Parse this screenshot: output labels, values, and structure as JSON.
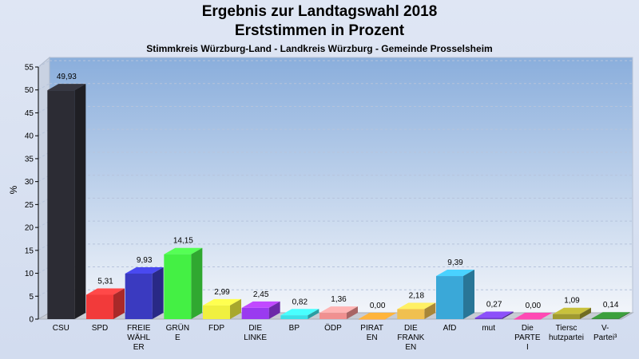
{
  "chart_data": {
    "type": "bar",
    "title": "Ergebnis zur Landtagswahl 2018",
    "title2": "Erststimmen in Prozent",
    "subtitle": "Stimmkreis Würzburg-Land - Landkreis Würzburg - Gemeinde Prosselsheim",
    "ylabel": "%",
    "ylim": [
      0,
      55
    ],
    "yticks": [
      0,
      5,
      10,
      15,
      20,
      25,
      30,
      35,
      40,
      45,
      50,
      55
    ],
    "grid": true,
    "categories": [
      [
        "CSU"
      ],
      [
        "SPD"
      ],
      [
        "FREIE",
        "WÄHL",
        "ER"
      ],
      [
        "GRÜN",
        "E"
      ],
      [
        "FDP"
      ],
      [
        "DIE",
        "LINKE"
      ],
      [
        "BP"
      ],
      [
        "ÖDP"
      ],
      [
        "PIRAT",
        "EN"
      ],
      [
        "DIE",
        "FRANK",
        "EN"
      ],
      [
        "AfD"
      ],
      [
        "mut"
      ],
      [
        "Die",
        "PARTE",
        "I"
      ],
      [
        "Tiersc",
        "hutzpartei"
      ],
      [
        "V-",
        "Partei³"
      ]
    ],
    "values": [
      49.93,
      5.31,
      9.93,
      14.15,
      2.99,
      2.45,
      0.82,
      1.36,
      0.0,
      2.18,
      9.39,
      0.27,
      0.0,
      1.09,
      0.14
    ],
    "value_labels": [
      "49,93",
      "5,31",
      "9,93",
      "14,15",
      "2,99",
      "2,45",
      "0,82",
      "1,36",
      "0,00",
      "2,18",
      "9,39",
      "0,27",
      "0,00",
      "1,09",
      "0,14"
    ],
    "colors": [
      "#2c2c34",
      "#f23a3a",
      "#3a3ac0",
      "#44f044",
      "#f0f040",
      "#9a3af0",
      "#3ae0e8",
      "#f09090",
      "#f09030",
      "#f0c050",
      "#3aa8d8",
      "#7040c8",
      "#f03a90",
      "#a09a30",
      "#308030"
    ]
  }
}
